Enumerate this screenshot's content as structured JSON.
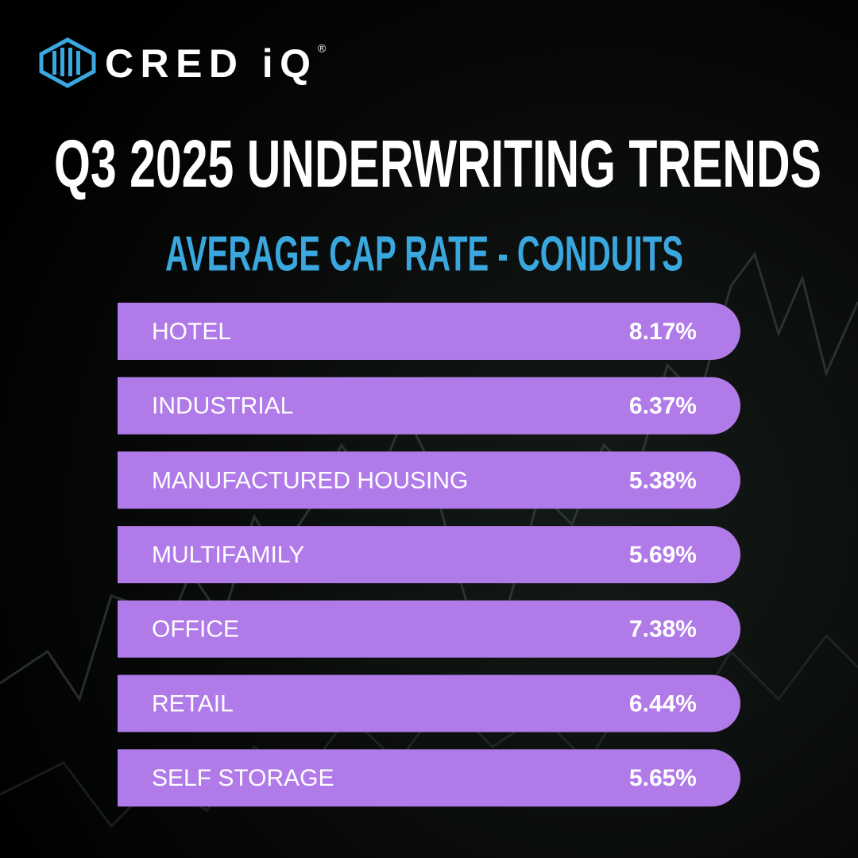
{
  "logo": {
    "text": "CRED iQ",
    "mark": "®"
  },
  "title": "Q3 2025 UNDERWRITING TRENDS",
  "subtitle": "AVERAGE CAP RATE - CONDUITS",
  "rows": [
    {
      "label": "HOTEL",
      "value": "8.17%"
    },
    {
      "label": "INDUSTRIAL",
      "value": "6.37%"
    },
    {
      "label": "MANUFACTURED HOUSING",
      "value": "5.38%"
    },
    {
      "label": "MULTIFAMILY",
      "value": "5.69%"
    },
    {
      "label": "OFFICE",
      "value": "7.38%"
    },
    {
      "label": "RETAIL",
      "value": "6.44%"
    },
    {
      "label": "SELF STORAGE",
      "value": "5.65%"
    }
  ]
}
